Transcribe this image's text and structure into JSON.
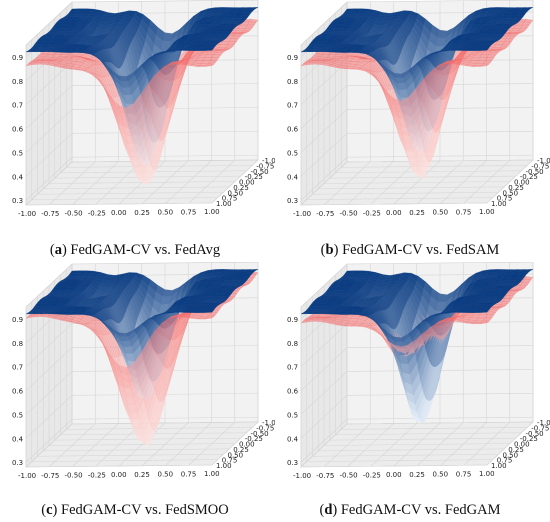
{
  "figure": {
    "panels": [
      {
        "letter": "a",
        "caption": "FedGAM-CV vs. FedAvg",
        "chart_data": {
          "type": "surface3d",
          "x_ticks": [
            "-1.00",
            "-0.75",
            "-0.50",
            "-0.25",
            "0.00",
            "0.25",
            "0.50",
            "0.75",
            "1.00"
          ],
          "y_ticks": [
            "-1.00",
            "-0.75",
            "-0.50",
            "-0.25",
            "0.00",
            "0.25",
            "0.50",
            "0.75",
            "1.00"
          ],
          "z_ticks": [
            "0.3",
            "0.4",
            "0.5",
            "0.6",
            "0.7",
            "0.8",
            "0.9"
          ],
          "xlim": [
            -1,
            1
          ],
          "ylim": [
            -1,
            1
          ],
          "zlim": [
            0.28,
            0.95
          ],
          "series": [
            {
              "surface": "blue",
              "plateau": 0.92,
              "valley_min": 0.34,
              "valley_width": 0.17,
              "center": [
                0.05,
                0.0
              ]
            },
            {
              "surface": "red",
              "plateau": 0.86,
              "valley_min": 0.27,
              "valley_width": 0.2,
              "center": [
                0.05,
                0.0
              ]
            }
          ]
        }
      },
      {
        "letter": "b",
        "caption": "FedGAM-CV vs. FedSAM",
        "chart_data": {
          "type": "surface3d",
          "x_ticks": [
            "-1.00",
            "-0.75",
            "-0.50",
            "-0.25",
            "0.00",
            "0.25",
            "0.50",
            "0.75",
            "1.00"
          ],
          "y_ticks": [
            "-1.00",
            "-0.75",
            "-0.50",
            "-0.25",
            "0.00",
            "0.25",
            "0.50",
            "0.75",
            "1.00"
          ],
          "z_ticks": [
            "0.3",
            "0.4",
            "0.5",
            "0.6",
            "0.7",
            "0.8",
            "0.9"
          ],
          "xlim": [
            -1,
            1
          ],
          "ylim": [
            -1,
            1
          ],
          "zlim": [
            0.28,
            0.95
          ],
          "series": [
            {
              "surface": "blue",
              "plateau": 0.92,
              "valley_min": 0.4,
              "valley_width": 0.17,
              "center": [
                0.05,
                0.0
              ]
            },
            {
              "surface": "red",
              "plateau": 0.86,
              "valley_min": 0.3,
              "valley_width": 0.19,
              "center": [
                0.05,
                0.0
              ]
            }
          ]
        }
      },
      {
        "letter": "c",
        "caption": "FedGAM-CV vs. FedSMOO",
        "chart_data": {
          "type": "surface3d",
          "x_ticks": [
            "-1.00",
            "-0.75",
            "-0.50",
            "-0.25",
            "0.00",
            "0.25",
            "0.50",
            "0.75",
            "1.00"
          ],
          "y_ticks": [
            "-1.00",
            "-0.75",
            "-0.50",
            "-0.25",
            "0.00",
            "0.25",
            "0.50",
            "0.75",
            "1.00"
          ],
          "z_ticks": [
            "0.3",
            "0.4",
            "0.5",
            "0.6",
            "0.7",
            "0.8",
            "0.9"
          ],
          "xlim": [
            -1,
            1
          ],
          "ylim": [
            -1,
            1
          ],
          "zlim": [
            0.28,
            0.95
          ],
          "series": [
            {
              "surface": "blue",
              "plateau": 0.92,
              "valley_min": 0.46,
              "valley_width": 0.17,
              "center": [
                0.05,
                0.0
              ]
            },
            {
              "surface": "red",
              "plateau": 0.9,
              "valley_min": 0.28,
              "valley_width": 0.21,
              "center": [
                0.05,
                0.0
              ]
            }
          ]
        }
      },
      {
        "letter": "d",
        "caption": "FedGAM-CV vs. FedGAM",
        "chart_data": {
          "type": "surface3d",
          "x_ticks": [
            "-1.00",
            "-0.75",
            "-0.50",
            "-0.25",
            "0.00",
            "0.25",
            "0.50",
            "0.75",
            "1.00"
          ],
          "y_ticks": [
            "-1.00",
            "-0.75",
            "-0.50",
            "-0.25",
            "0.00",
            "0.25",
            "0.50",
            "0.75",
            "1.00"
          ],
          "z_ticks": [
            "0.3",
            "0.4",
            "0.5",
            "0.6",
            "0.7",
            "0.8",
            "0.9"
          ],
          "xlim": [
            -1,
            1
          ],
          "ylim": [
            -1,
            1
          ],
          "zlim": [
            0.28,
            0.95
          ],
          "series": [
            {
              "surface": "blue",
              "plateau": 0.92,
              "valley_min": 0.36,
              "valley_width": 0.17,
              "center": [
                0.05,
                0.0
              ]
            },
            {
              "surface": "red",
              "plateau": 0.88,
              "valley_min": 0.55,
              "valley_width": 0.2,
              "center": [
                0.05,
                0.0
              ]
            }
          ]
        }
      }
    ],
    "colors": {
      "blue_dark": "#0b3d82",
      "blue_light": "#eaf2fb",
      "red_dark": "#f26d6d",
      "red_light": "#fde4e1",
      "pane": "#f2f2f2",
      "grid": "#d6d6d6"
    }
  }
}
